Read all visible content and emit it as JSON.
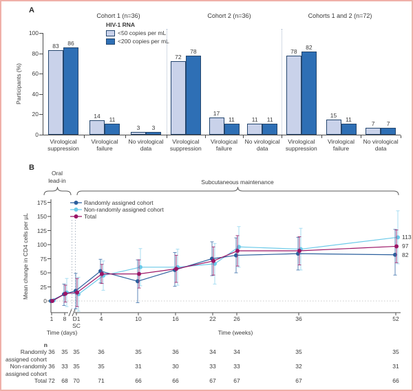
{
  "chart_data": {
    "panel_a": {
      "type": "bar",
      "panel_label": "A",
      "ylabel": "Participants (%)",
      "ylim": [
        0,
        100
      ],
      "yticks": [
        0,
        20,
        40,
        60,
        80,
        100
      ],
      "legend": {
        "title": "HIV-1 RNA",
        "items": [
          {
            "label": "<50 copies per mL",
            "color": "#c9d2ea"
          },
          {
            "label": "<200 copies per mL",
            "color": "#2e6fb5"
          }
        ]
      },
      "colors": {
        "lt50": "#c9d2ea",
        "lt200": "#2e6fb5",
        "bar_border": "#24466e"
      },
      "groups": [
        {
          "title": "Cohort 1 (n=36)",
          "categories": [
            {
              "label_lines": [
                "Virological",
                "suppression"
              ],
              "values": [
                83,
                86
              ]
            },
            {
              "label_lines": [
                "Virological",
                "failure"
              ],
              "values": [
                14,
                11
              ]
            },
            {
              "label_lines": [
                "No virological",
                "data"
              ],
              "values": [
                3,
                3
              ]
            }
          ]
        },
        {
          "title": "Cohort 2 (n=36)",
          "categories": [
            {
              "label_lines": [
                "Virological",
                "suppression"
              ],
              "values": [
                72,
                78
              ]
            },
            {
              "label_lines": [
                "Virological",
                "failure"
              ],
              "values": [
                17,
                11
              ]
            },
            {
              "label_lines": [
                "No virological",
                "data"
              ],
              "values": [
                11,
                11
              ]
            }
          ]
        },
        {
          "title": "Cohorts 1 and 2 (n=72)",
          "categories": [
            {
              "label_lines": [
                "Virological",
                "suppression"
              ],
              "values": [
                78,
                82
              ]
            },
            {
              "label_lines": [
                "Virological",
                "failure"
              ],
              "values": [
                15,
                11
              ]
            },
            {
              "label_lines": [
                "No virological",
                "data"
              ],
              "values": [
                7,
                7
              ]
            }
          ]
        }
      ]
    },
    "panel_b": {
      "type": "line",
      "panel_label": "B",
      "phase_oral": "Oral lead-in",
      "phase_sub": "Subcutaneous maintenance",
      "ylabel": "Mean change in CD4 cells per µL",
      "ylim": [
        0,
        175
      ],
      "yticks": [
        0,
        25,
        50,
        75,
        100,
        125,
        150,
        175
      ],
      "xlabel_days": "Time (days)",
      "xlabel_weeks": "Time (weeks)",
      "x_ticks": [
        "1",
        "8",
        "D1",
        "4",
        "10",
        "16",
        "22",
        "26",
        "36",
        "52"
      ],
      "x_tick_sub": "SC",
      "series": [
        {
          "name": "Randomly assigned cohort",
          "color": "#2b5f9d",
          "err_color": "#5c87b8",
          "values": [
            0,
            12,
            18,
            53,
            35,
            55,
            75,
            81,
            84,
            82
          ],
          "lo": [
            0,
            -8,
            -14,
            32,
            -3,
            26,
            45,
            50,
            55,
            46
          ],
          "hi": [
            0,
            30,
            49,
            74,
            73,
            86,
            105,
            112,
            113,
            127
          ],
          "end_label": "82"
        },
        {
          "name": "Non-randomly assigned cohort",
          "color": "#6bcae9",
          "err_color": "#a7ddf2",
          "values": [
            1,
            15,
            12,
            45,
            60,
            60,
            66,
            96,
            92,
            113
          ],
          "lo": [
            0,
            -10,
            -18,
            19,
            27,
            28,
            30,
            60,
            55,
            66
          ],
          "hi": [
            2,
            40,
            42,
            71,
            93,
            92,
            102,
            132,
            129,
            160
          ],
          "end_label": "113"
        },
        {
          "name": "Total",
          "color": "#9b1566",
          "err_color": "#a23a7c",
          "values": [
            0,
            13,
            15,
            48,
            48,
            57,
            71,
            89,
            89,
            97
          ],
          "lo": [
            -1,
            -2,
            -10,
            31,
            23,
            33,
            46,
            62,
            64,
            68
          ],
          "hi": [
            1,
            28,
            40,
            65,
            73,
            81,
            96,
            116,
            114,
            126
          ],
          "end_label": "97"
        }
      ],
      "table": {
        "header": "n",
        "rows": [
          {
            "label_lines": [
              "Randomly",
              "assigned cohort"
            ],
            "values": [
              "36",
              "35",
              "35",
              "36",
              "35",
              "36",
              "34",
              "34",
              "35",
              "35"
            ]
          },
          {
            "label_lines": [
              "Non-randomly",
              "assigned cohort"
            ],
            "values": [
              "36",
              "33",
              "35",
              "35",
              "31",
              "30",
              "33",
              "33",
              "32",
              "31"
            ]
          },
          {
            "label_lines": [
              "Total"
            ],
            "values": [
              "72",
              "68",
              "70",
              "71",
              "66",
              "66",
              "67",
              "67",
              "67",
              "66"
            ]
          }
        ]
      }
    }
  }
}
